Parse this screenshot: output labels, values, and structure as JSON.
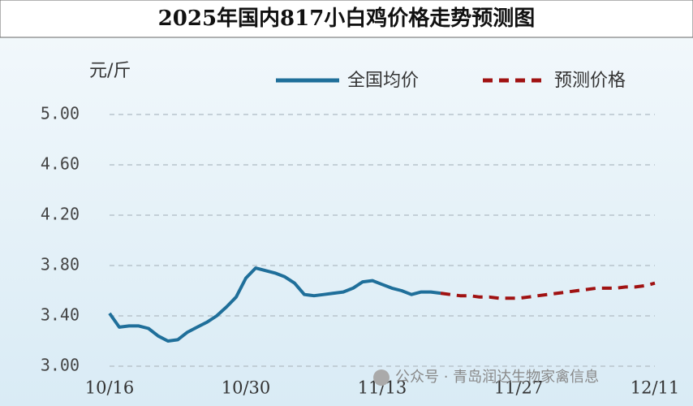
{
  "chart_data": {
    "type": "line",
    "title": "2025年国内817小白鸡价格走势预测图",
    "y_label": "元/斤",
    "watermark": "公众号 · 青岛润达生物家禽信息",
    "categories": [
      "10/16",
      null,
      null,
      null,
      null,
      null,
      null,
      null,
      null,
      null,
      null,
      null,
      null,
      null,
      "10/30",
      null,
      null,
      null,
      null,
      null,
      null,
      null,
      null,
      null,
      null,
      null,
      null,
      null,
      "11/13",
      null,
      null,
      null,
      null,
      null,
      null,
      null,
      null,
      null,
      null,
      null,
      null,
      null,
      "11/27",
      null,
      null,
      null,
      null,
      null,
      null,
      null,
      null,
      null,
      null,
      null,
      null,
      null,
      "12/11"
    ],
    "series": [
      {
        "name": "全国均价",
        "color": "#1f6f9a",
        "dashed": false,
        "values": [
          3.42,
          3.31,
          3.32,
          3.32,
          3.3,
          3.24,
          3.2,
          3.21,
          3.27,
          3.31,
          3.35,
          3.4,
          3.47,
          3.55,
          3.7,
          3.78,
          3.76,
          3.74,
          3.71,
          3.66,
          3.57,
          3.56,
          3.57,
          3.58,
          3.59,
          3.62,
          3.67,
          3.68,
          3.65,
          3.62,
          3.6,
          3.57,
          3.59,
          3.59,
          3.58,
          null,
          null,
          null,
          null,
          null,
          null,
          null,
          null,
          null,
          null,
          null,
          null,
          null,
          null,
          null,
          null,
          null,
          null,
          null,
          null,
          null,
          null
        ]
      },
      {
        "name": "预测价格",
        "color": "#a01212",
        "dashed": true,
        "values": [
          null,
          null,
          null,
          null,
          null,
          null,
          null,
          null,
          null,
          null,
          null,
          null,
          null,
          null,
          null,
          null,
          null,
          null,
          null,
          null,
          null,
          null,
          null,
          null,
          null,
          null,
          null,
          null,
          null,
          null,
          null,
          null,
          null,
          null,
          3.58,
          3.57,
          3.56,
          3.56,
          3.55,
          3.55,
          3.54,
          3.54,
          3.54,
          3.55,
          3.56,
          3.57,
          3.58,
          3.59,
          3.6,
          3.61,
          3.62,
          3.62,
          3.62,
          3.63,
          3.63,
          3.64,
          3.66
        ]
      }
    ],
    "ylim": [
      3.0,
      5.0
    ],
    "yticks": [
      {
        "value": 3.0,
        "label": "3.00"
      },
      {
        "value": 3.4,
        "label": "3.40"
      },
      {
        "value": 3.8,
        "label": "3.80"
      },
      {
        "value": 4.2,
        "label": "4.20"
      },
      {
        "value": 4.6,
        "label": "4.60"
      },
      {
        "value": 5.0,
        "label": "5.00"
      }
    ],
    "grid": true
  }
}
